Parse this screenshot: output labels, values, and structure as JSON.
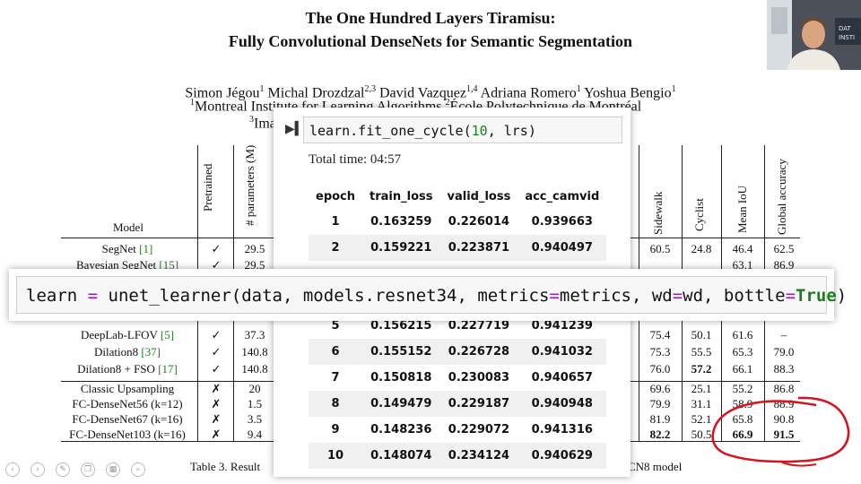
{
  "paper": {
    "title_line1": "The One Hundred Layers Tiramisu:",
    "title_line2": "Fully Convolutional DenseNets for Semantic Segmentation",
    "authors": [
      {
        "name": "Simon Jégou",
        "sup": "1"
      },
      {
        "name": "Michal Drozdzal",
        "sup": "2,3"
      },
      {
        "name": "David Vazquez",
        "sup": "1,4"
      },
      {
        "name": "Adriana Romero",
        "sup": "1"
      },
      {
        "name": "Yoshua Bengio",
        "sup": "1"
      }
    ],
    "affil_line": "Montreal Institute for Learning Algorithms",
    "affil_sup": "1",
    "affil_sup2": "2",
    "affil_right": "École Polytechnique de Montréal",
    "affil3_sup": "3",
    "affil3_fragment": "Ima",
    "caption_left": "Table 3. Result",
    "caption_right": "CN8 model",
    "table": {
      "col_model": "Model",
      "col_pretrained": "Pretrained",
      "col_params": "# parameters (M)",
      "col_sidewalk": "Sidewalk",
      "col_cyclist": "Cyclist",
      "col_miou": "Mean IoU",
      "col_gacc": "Global accuracy",
      "rows": [
        {
          "model": "SegNet",
          "ref": "[1]",
          "pre": "✓",
          "params": "29.5",
          "sidewalk": "60.5",
          "cyclist": "24.8",
          "miou": "46.4",
          "gacc": "62.5"
        },
        {
          "model": "Bayesian SegNet",
          "ref": "[15]",
          "pre": "✓",
          "params": "29.5",
          "sidewalk": "",
          "cyclist": "",
          "miou": "63.1",
          "gacc": "86.9"
        },
        {
          "model": "DeepLab-LFOV",
          "ref": "[5]",
          "pre": "✓",
          "params": "37.3",
          "sidewalk": "75.4",
          "cyclist": "50.1",
          "miou": "61.6",
          "gacc": "–"
        },
        {
          "model": "Dilation8",
          "ref": "[37]",
          "pre": "✓",
          "params": "140.8",
          "sidewalk": "75.3",
          "cyclist": "55.5",
          "miou": "65.3",
          "gacc": "79.0"
        },
        {
          "model": "Dilation8 + FSO",
          "ref": "[17]",
          "pre": "✓",
          "params": "140.8",
          "sidewalk": "76.0",
          "cyclist": "57.2",
          "miou": "66.1",
          "gacc": "88.3"
        },
        {
          "model": "Classic Upsampling",
          "ref": "",
          "pre": "✗",
          "params": "20",
          "sidewalk": "69.6",
          "cyclist": "25.1",
          "miou": "55.2",
          "gacc": "86.8"
        },
        {
          "model": "FC-DenseNet56 (k=12)",
          "ref": "",
          "pre": "✗",
          "params": "1.5",
          "sidewalk": "79.9",
          "cyclist": "31.1",
          "miou": "58.9",
          "gacc": "88.9"
        },
        {
          "model": "FC-DenseNet67 (k=16)",
          "ref": "",
          "pre": "✗",
          "params": "3.5",
          "sidewalk": "81.9",
          "cyclist": "52.1",
          "miou": "65.8",
          "gacc": "90.8"
        },
        {
          "model": "FC-DenseNet103 (k=16)",
          "ref": "",
          "pre": "✗",
          "params": "9.4",
          "sidewalk": "82.2",
          "cyclist": "50.5",
          "miou": "66.9",
          "gacc": "91.5"
        }
      ]
    }
  },
  "notebook": {
    "cell1_code_prefix": "learn.fit_one_cycle(",
    "cell1_code_num": "10",
    "cell1_code_suffix": ", lrs)",
    "total_time": "Total time: 04:57",
    "headers": [
      "epoch",
      "train_loss",
      "valid_loss",
      "acc_camvid"
    ],
    "rows": [
      [
        "1",
        "0.163259",
        "0.226014",
        "0.939663"
      ],
      [
        "2",
        "0.159221",
        "0.223871",
        "0.940497"
      ],
      [
        "",
        "",
        "",
        ""
      ],
      [
        "",
        "",
        "",
        ""
      ],
      [
        "5",
        "0.156215",
        "0.227719",
        "0.941239"
      ],
      [
        "6",
        "0.155152",
        "0.226728",
        "0.941032"
      ],
      [
        "7",
        "0.150818",
        "0.230083",
        "0.940657"
      ],
      [
        "8",
        "0.149479",
        "0.229187",
        "0.940948"
      ],
      [
        "9",
        "0.148236",
        "0.229072",
        "0.941316"
      ],
      [
        "10",
        "0.148074",
        "0.234124",
        "0.940629"
      ]
    ],
    "cell2": {
      "a": "learn ",
      "eq": "=",
      "b": " unet_learner(data, models.resnet34, metrics",
      "eq2": "=",
      "c": "metrics, wd",
      "eq3": "=",
      "d": "wd, bottle",
      "eq4": "=",
      "true": "True",
      "e": ")"
    }
  },
  "colors": {
    "annotation": "#d4141e",
    "code_green": "#1a7f1a",
    "operator": "#a020c0"
  },
  "toolbar_icons": [
    "back-icon",
    "forward-icon",
    "pen-icon",
    "copy-icon",
    "grid-icon",
    "search-icon"
  ]
}
